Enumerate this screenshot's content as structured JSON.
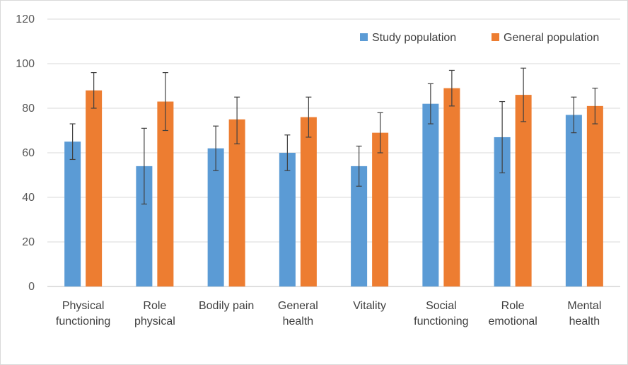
{
  "chart_data": {
    "type": "bar",
    "title": "",
    "xlabel": "",
    "ylabel": "",
    "ylim": [
      0,
      120
    ],
    "yticks": [
      0,
      20,
      40,
      60,
      80,
      100,
      120
    ],
    "grid": true,
    "legend_position": "top-right",
    "categories": [
      [
        "Physical",
        "functioning"
      ],
      [
        "Role",
        "physical"
      ],
      [
        "Bodily pain"
      ],
      [
        "General",
        "health"
      ],
      [
        "Vitality"
      ],
      [
        "Social",
        "functioning"
      ],
      [
        "Role",
        "emotional"
      ],
      [
        "Mental",
        "health"
      ]
    ],
    "series": [
      {
        "name": "Study population",
        "color": "#5b9bd5",
        "values": [
          65,
          54,
          62,
          60,
          54,
          82,
          67,
          77
        ],
        "error_low": [
          57,
          37,
          52,
          52,
          45,
          73,
          51,
          69
        ],
        "error_high": [
          73,
          71,
          72,
          68,
          63,
          91,
          83,
          85
        ]
      },
      {
        "name": "General population",
        "color": "#ed7d31",
        "values": [
          88,
          83,
          75,
          76,
          69,
          89,
          86,
          81
        ],
        "error_low": [
          80,
          70,
          64,
          67,
          60,
          81,
          74,
          73
        ],
        "error_high": [
          96,
          96,
          85,
          85,
          78,
          97,
          98,
          89
        ]
      }
    ]
  }
}
